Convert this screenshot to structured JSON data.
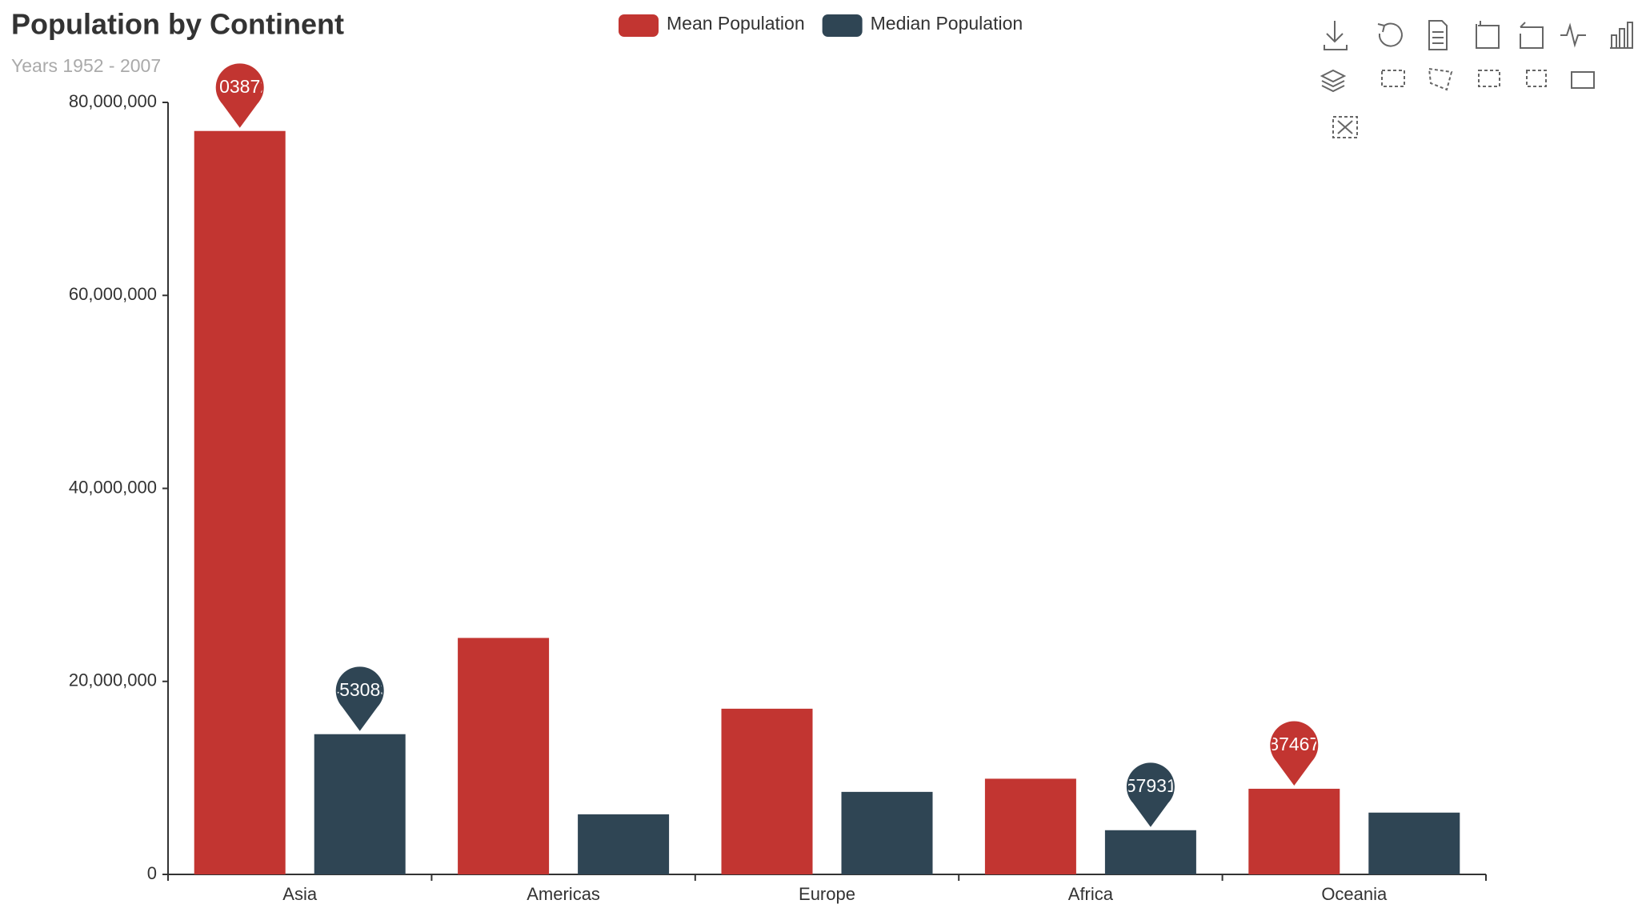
{
  "chart_data": {
    "type": "bar",
    "title": "Population by Continent",
    "subtitle": "Years 1952 - 2007",
    "categories": [
      "Asia",
      "Americas",
      "Europe",
      "Africa",
      "Oceania"
    ],
    "series": [
      {
        "name": "Mean Population",
        "color": "#c23531",
        "values": [
          77038722,
          24504795,
          17169765,
          9916003,
          8874672
        ]
      },
      {
        "name": "Median Population",
        "color": "#2f4554",
        "values": [
          14530830,
          6227510,
          8551125,
          4579311,
          6403491
        ]
      }
    ],
    "mark_points": [
      "max",
      "min"
    ],
    "ylim": [
      0,
      80000000
    ],
    "yticks": [
      0,
      {
        "value": 20000000,
        "label": "20,000,000"
      },
      {
        "value": 40000000,
        "label": "40,000,000"
      },
      {
        "value": 60000000,
        "label": "60,000,000"
      },
      {
        "value": 80000000,
        "label": "80,000,000"
      }
    ],
    "legend": "top"
  }
}
